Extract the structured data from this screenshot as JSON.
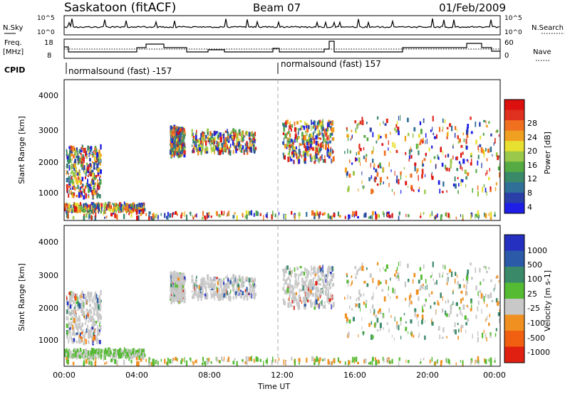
{
  "chart_data": {
    "type": "heatmap",
    "title": "Saskatoon (fitACF)",
    "beam": "Beam 07",
    "date": "01/Feb/2009",
    "x_ticks": [
      "00:00",
      "04:00",
      "08:00",
      "12:00",
      "16:00",
      "20:00",
      "00:00"
    ],
    "xlabel": "Time UT",
    "nsky_panel": {
      "left_label": "N.Sky",
      "right_label": "N.Search",
      "left_ticks": [
        "10^5",
        "10^0"
      ],
      "right_ticks": [
        "10^5",
        "10^0"
      ]
    },
    "freq_panel": {
      "left_label_1": "Freq.",
      "left_label_2": "[MHz]",
      "left_ticks": [
        "18",
        "8"
      ],
      "right_ticks": [
        "60",
        "0"
      ],
      "right_label": "Nave"
    },
    "cpid": {
      "label": "CPID",
      "segments": [
        {
          "start_hour": 0,
          "name": "normalsound (fast) -157"
        },
        {
          "start_hour": 12,
          "name": "normalsound (fast) 157"
        }
      ]
    },
    "power_panel": {
      "ylabel": "Slant Range [km]",
      "y_ticks": [
        "4000",
        "3000",
        "2000",
        "1000"
      ],
      "colorbar_label": "Power [dB]",
      "colorbar_ticks": [
        "28",
        "24",
        "20",
        "16",
        "12",
        "8",
        "4"
      ],
      "colors": [
        "#1e1ee6",
        "#2a3fa8",
        "#2f6f98",
        "#3a8a6a",
        "#55aa44",
        "#9ac84a",
        "#e8e030",
        "#f0a020",
        "#f07020",
        "#e03020",
        "#dd1010"
      ]
    },
    "velocity_panel": {
      "ylabel": "Slant Range [km]",
      "y_ticks": [
        "4000",
        "3000",
        "2000",
        "1000"
      ],
      "colorbar_label": "Velocity [m s-1]",
      "colorbar_ticks": [
        "1000",
        "500",
        "100",
        "25",
        "-25",
        "-100",
        "-500",
        "-1000"
      ],
      "colors": [
        "#2530c0",
        "#2a5aa8",
        "#3a8a6a",
        "#55bb33",
        "#c8c8c8",
        "#f09020",
        "#f06010",
        "#e02010"
      ]
    },
    "echo_regions": [
      {
        "t0": 0.1,
        "t1": 2.0,
        "r0": 900,
        "r1": 2500
      },
      {
        "t0": 0.0,
        "t1": 4.4,
        "r0": 450,
        "r1": 700
      },
      {
        "t0": 5.8,
        "t1": 6.6,
        "r0": 2200,
        "r1": 3100
      },
      {
        "t0": 7.0,
        "t1": 10.5,
        "r0": 2300,
        "r1": 3000
      },
      {
        "t0": 12.0,
        "t1": 14.8,
        "r0": 2000,
        "r1": 3300
      },
      {
        "t0": 15.4,
        "t1": 24.0,
        "r0": 1000,
        "r1": 3400
      },
      {
        "t0": 0.0,
        "t1": 24.0,
        "r0": 250,
        "r1": 420
      }
    ]
  }
}
